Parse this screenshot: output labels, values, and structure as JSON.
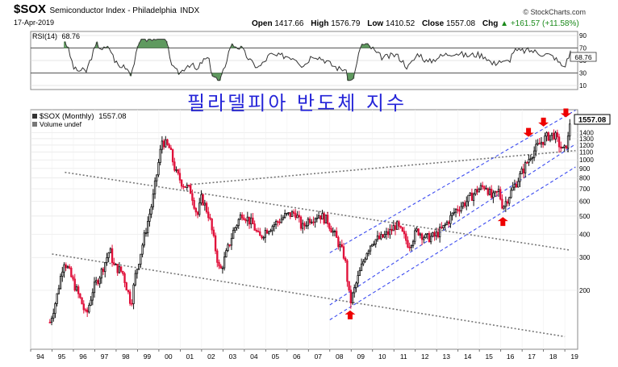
{
  "header": {
    "symbol": "$SOX",
    "name": "Semiconductor Index - Philadelphia",
    "exchange": "INDX",
    "date": "17-Apr-2019",
    "credit": "© StockCharts.com",
    "open_label": "Open",
    "open": "1417.66",
    "high_label": "High",
    "high": "1576.79",
    "low_label": "Low",
    "low": "1410.52",
    "close_label": "Close",
    "close": "1557.08",
    "chg_label": "Chg",
    "chg": "+161.57 (+11.58%)",
    "chg_arrow": "▲"
  },
  "rsi_panel": {
    "label": "RSI(14)",
    "value": "68.76",
    "levels": [
      "90",
      "70",
      "50",
      "30",
      "10"
    ],
    "value_marker": "68.76"
  },
  "annotation_title": "필라델피아 반도체 지수",
  "price_panel": {
    "legend_label": "$SOX (Monthly)",
    "legend_value": "1557.08",
    "volume_label": "Volume undef",
    "last_price_marker": "1557.08"
  },
  "chart_data": {
    "type": "candlestick",
    "scale": "log",
    "ylim": [
      110,
      1750
    ],
    "xlim": [
      1994.0,
      2019.6
    ],
    "x_ticks": [
      "94",
      "95",
      "96",
      "97",
      "98",
      "99",
      "00",
      "01",
      "02",
      "03",
      "04",
      "05",
      "06",
      "07",
      "08",
      "09",
      "10",
      "11",
      "12",
      "13",
      "14",
      "15",
      "16",
      "17",
      "18",
      "19"
    ],
    "y_ticks": [
      200,
      300,
      400,
      500,
      600,
      700,
      800,
      900,
      1000,
      1100,
      1200,
      1300,
      1400
    ],
    "anchors": [
      [
        1994.9,
        135
      ],
      [
        1995.2,
        180
      ],
      [
        1995.55,
        290
      ],
      [
        1995.75,
        260
      ],
      [
        1996.0,
        220
      ],
      [
        1996.4,
        170
      ],
      [
        1996.6,
        145
      ],
      [
        1996.9,
        200
      ],
      [
        1997.3,
        250
      ],
      [
        1997.7,
        330
      ],
      [
        1997.9,
        270
      ],
      [
        1998.3,
        250
      ],
      [
        1998.7,
        170
      ],
      [
        1998.9,
        240
      ],
      [
        1999.3,
        380
      ],
      [
        1999.7,
        600
      ],
      [
        2000.15,
        1270
      ],
      [
        2000.5,
        1150
      ],
      [
        2000.8,
        850
      ],
      [
        2001.1,
        750
      ],
      [
        2001.5,
        680
      ],
      [
        2001.8,
        500
      ],
      [
        2002.0,
        630
      ],
      [
        2002.35,
        500
      ],
      [
        2002.7,
        310
      ],
      [
        2002.85,
        250
      ],
      [
        2003.1,
        300
      ],
      [
        2003.5,
        420
      ],
      [
        2003.9,
        520
      ],
      [
        2004.4,
        450
      ],
      [
        2004.7,
        380
      ],
      [
        2005.0,
        420
      ],
      [
        2005.5,
        460
      ],
      [
        2005.9,
        500
      ],
      [
        2006.4,
        520
      ],
      [
        2006.7,
        430
      ],
      [
        2007.0,
        480
      ],
      [
        2007.5,
        510
      ],
      [
        2007.9,
        470
      ],
      [
        2008.3,
        380
      ],
      [
        2008.7,
        300
      ],
      [
        2008.95,
        170
      ],
      [
        2009.3,
        230
      ],
      [
        2009.7,
        320
      ],
      [
        2010.0,
        370
      ],
      [
        2010.4,
        380
      ],
      [
        2010.8,
        410
      ],
      [
        2011.1,
        450
      ],
      [
        2011.4,
        400
      ],
      [
        2011.7,
        350
      ],
      [
        2012.1,
        420
      ],
      [
        2012.5,
        380
      ],
      [
        2012.9,
        390
      ],
      [
        2013.3,
        430
      ],
      [
        2013.9,
        540
      ],
      [
        2014.4,
        600
      ],
      [
        2014.9,
        690
      ],
      [
        2015.3,
        730
      ],
      [
        2015.6,
        620
      ],
      [
        2015.9,
        680
      ],
      [
        2016.1,
        560
      ],
      [
        2016.5,
        680
      ],
      [
        2016.9,
        820
      ],
      [
        2017.4,
        1060
      ],
      [
        2017.9,
        1250
      ],
      [
        2018.2,
        1340
      ],
      [
        2018.5,
        1370
      ],
      [
        2018.75,
        1200
      ],
      [
        2018.95,
        1100
      ],
      [
        2019.15,
        1300
      ],
      [
        2019.3,
        1557
      ]
    ],
    "trendlines": {
      "black_dotted": [
        [
          [
            1995.6,
            858
          ],
          [
            2019.2,
            329
          ]
        ],
        [
          [
            2001.5,
            738
          ],
          [
            2019.5,
            1122
          ]
        ],
        [
          [
            1995.0,
            313
          ],
          [
            2019.0,
            113
          ]
        ]
      ],
      "blue_dashed": [
        [
          [
            2008.0,
            318
          ],
          [
            2019.5,
            1845
          ]
        ],
        [
          [
            2008.0,
            167
          ],
          [
            2019.5,
            1215
          ]
        ],
        [
          [
            2008.0,
            139
          ],
          [
            2019.5,
            917
          ]
        ]
      ]
    },
    "down_arrows": [
      [
        2017.3,
        1330
      ],
      [
        2018.0,
        1510
      ],
      [
        2019.05,
        1690
      ]
    ],
    "up_arrows": [
      [
        2008.95,
        156
      ],
      [
        2016.1,
        494
      ]
    ]
  }
}
